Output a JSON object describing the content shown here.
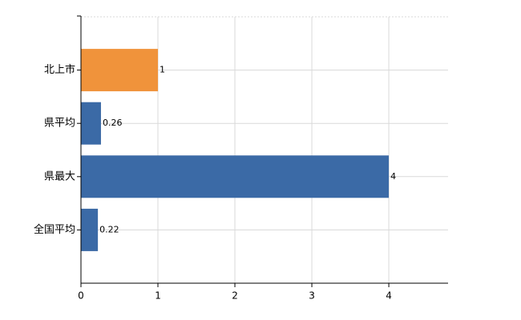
{
  "chart_data": {
    "type": "hbar",
    "categories": [
      "北上市",
      "県平均",
      "県最大",
      "全国平均"
    ],
    "values": [
      1,
      0.26,
      4,
      0.22
    ],
    "colors": [
      "#f0933b",
      "#3b6aa6",
      "#3b6aa6",
      "#3b6aa6"
    ],
    "xlim": [
      0,
      4.77
    ],
    "xticks": [
      0,
      1,
      2,
      3,
      4
    ],
    "grid": true
  }
}
